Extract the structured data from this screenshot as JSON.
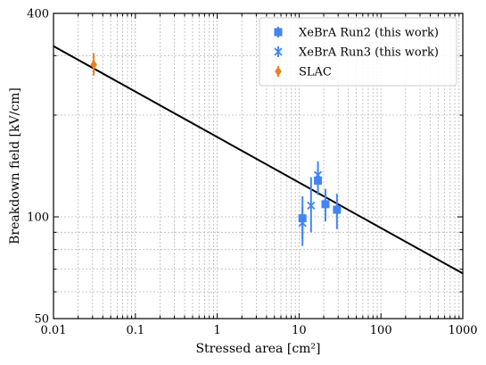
{
  "chart_data": {
    "type": "scatter",
    "xlabel": "Stressed area [cm²]",
    "ylabel": "Breakdown field [kV/cm]",
    "xscale": "log",
    "yscale": "log",
    "xlim": [
      0.01,
      1000
    ],
    "ylim": [
      50,
      400
    ],
    "xticks": [
      {
        "value": 0.01,
        "label": "0.01"
      },
      {
        "value": 0.1,
        "label": "0.1"
      },
      {
        "value": 1,
        "label": "1"
      },
      {
        "value": 10,
        "label": "10"
      },
      {
        "value": 100,
        "label": "100"
      },
      {
        "value": 1000,
        "label": "1000"
      }
    ],
    "yticks": [
      {
        "value": 50,
        "label": "50"
      },
      {
        "value": 100,
        "label": "100"
      },
      {
        "value": 400,
        "label": "400"
      }
    ],
    "grid": true,
    "legend_position": "top-right",
    "fit_line": {
      "x": [
        0.01,
        1000
      ],
      "y": [
        320,
        68
      ],
      "color": "#000000"
    },
    "series": [
      {
        "name": "XeBrA Run2 (this work)",
        "marker": "square",
        "color": "#4285f4",
        "points": [
          {
            "x": 11,
            "y": 99,
            "ylow": 82,
            "yhigh": 115
          },
          {
            "x": 17,
            "y": 128,
            "ylow": 116,
            "yhigh": 140
          },
          {
            "x": 21,
            "y": 109,
            "ylow": 97,
            "yhigh": 121
          },
          {
            "x": 29,
            "y": 105,
            "ylow": 92,
            "yhigh": 117
          }
        ]
      },
      {
        "name": "XeBrA Run3 (this work)",
        "marker": "x",
        "color": "#4285f4",
        "points": [
          {
            "x": 11,
            "y": 96,
            "ylow": 86,
            "yhigh": 107
          },
          {
            "x": 14,
            "y": 108,
            "ylow": 90,
            "yhigh": 131
          },
          {
            "x": 17,
            "y": 133,
            "ylow": 120,
            "yhigh": 146
          }
        ]
      },
      {
        "name": "SLAC",
        "marker": "diamond",
        "color": "#f07d1e",
        "points": [
          {
            "x": 0.031,
            "y": 282,
            "ylow": 262,
            "yhigh": 305
          }
        ]
      }
    ]
  }
}
